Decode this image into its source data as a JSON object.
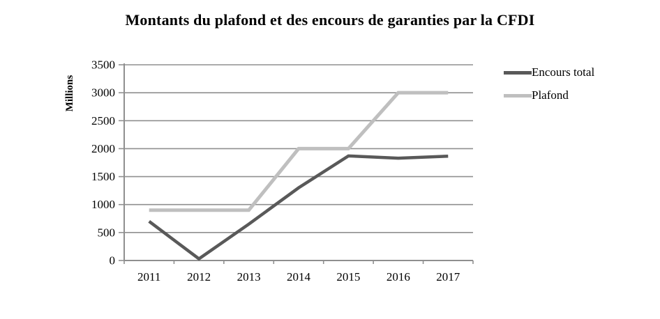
{
  "title": "Montants du plafond et des encours de garanties par la CFDI",
  "chart_data": {
    "type": "line",
    "categories": [
      "2011",
      "2012",
      "2013",
      "2014",
      "2015",
      "2016",
      "2017"
    ],
    "series": [
      {
        "name": "Encours total",
        "color": "#595959",
        "stroke_width": 4.5,
        "values": [
          700,
          30,
          650,
          1300,
          1870,
          1830,
          1865
        ]
      },
      {
        "name": "Plafond",
        "color": "#bfbfbf",
        "stroke_width": 5,
        "values": [
          900,
          900,
          900,
          2000,
          2000,
          3000,
          3000
        ]
      }
    ],
    "ylabel": "Millions",
    "xlabel": "",
    "ylim": [
      0,
      3500
    ],
    "ytick_step": 500,
    "yticks": [
      "0",
      "500",
      "1000",
      "1500",
      "2000",
      "2500",
      "3000",
      "3500"
    ],
    "grid": true,
    "legend_position": "right"
  },
  "colors": {
    "grid": "#8f8f8f",
    "axis": "#8f8f8f",
    "text": "#000000",
    "background": "#ffffff"
  }
}
